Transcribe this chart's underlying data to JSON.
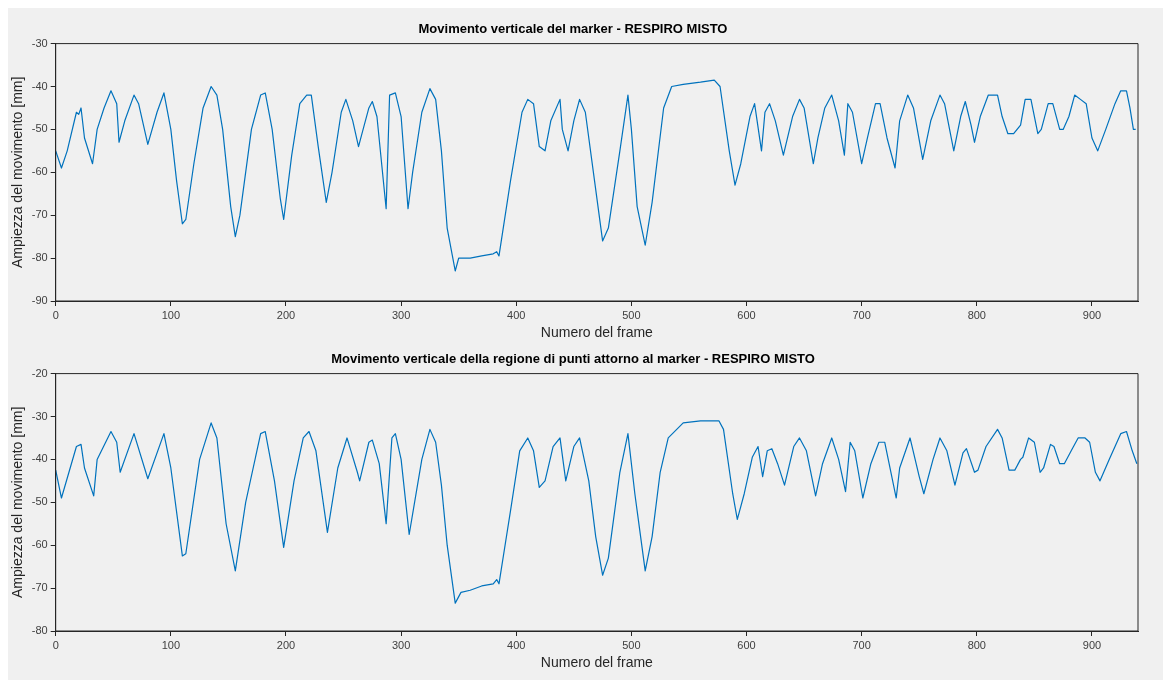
{
  "chart_data": [
    {
      "type": "line",
      "title": "Movimento verticale del marker - RESPIRO MISTO",
      "xlabel": "Numero del frame",
      "ylabel": "Ampiezza del movimento [mm]",
      "xlim": [
        0,
        940
      ],
      "xticks": [
        0,
        100,
        200,
        300,
        400,
        500,
        600,
        700,
        800,
        900
      ],
      "ylim": [
        -90,
        -30
      ],
      "yticks": [
        -90,
        -80,
        -70,
        -60,
        -50,
        -40,
        -30
      ],
      "grid": false,
      "series": [
        {
          "color": "#0072bd",
          "x": [
            0,
            5,
            10,
            18,
            20,
            22,
            25,
            32,
            36,
            42,
            48,
            53,
            55,
            60,
            68,
            72,
            80,
            88,
            94,
            100,
            105,
            110,
            113,
            120,
            128,
            135,
            140,
            145,
            152,
            156,
            160,
            170,
            178,
            182,
            188,
            195,
            198,
            205,
            212,
            218,
            222,
            228,
            235,
            240,
            248,
            252,
            258,
            263,
            266,
            272,
            275,
            279,
            287,
            290,
            295,
            300,
            306,
            310,
            318,
            325,
            330,
            335,
            340,
            347,
            350,
            360,
            370,
            380,
            383,
            385,
            395,
            405,
            410,
            415,
            420,
            425,
            430,
            438,
            440,
            445,
            450,
            455,
            460,
            468,
            475,
            480,
            490,
            497,
            500,
            505,
            512,
            518,
            528,
            535,
            545,
            560,
            572,
            577,
            585,
            590,
            595,
            603,
            607,
            613,
            616,
            620,
            625,
            632,
            640,
            646,
            650,
            658,
            662,
            668,
            674,
            680,
            685,
            688,
            692,
            700,
            705,
            712,
            716,
            722,
            729,
            733,
            740,
            745,
            753,
            760,
            768,
            772,
            780,
            786,
            790,
            795,
            798,
            803,
            810,
            818,
            822,
            827,
            832,
            838,
            842,
            847,
            853,
            856,
            862,
            866,
            872,
            875,
            880,
            885,
            890,
            895,
            900,
            905,
            912,
            920,
            925,
            930,
            933,
            936,
            938
          ],
          "values": [
            -55,
            -59,
            -55,
            -46,
            -46.5,
            -45,
            -52,
            -58,
            -50,
            -45,
            -41,
            -44,
            -53,
            -48,
            -42,
            -44,
            -53.5,
            -46,
            -41.5,
            -50,
            -62,
            -72,
            -71,
            -58,
            -45,
            -40,
            -42,
            -50,
            -68,
            -75,
            -70,
            -50,
            -42,
            -41.5,
            -50,
            -66,
            -71,
            -56,
            -44,
            -42,
            -42,
            -54,
            -67,
            -60,
            -46,
            -43,
            -48,
            -54,
            -51,
            -45,
            -43.5,
            -47,
            -68.5,
            -42,
            -41.5,
            -47,
            -68.5,
            -60,
            -46,
            -40.5,
            -43,
            -55,
            -73,
            -83,
            -80,
            -80,
            -79.5,
            -79,
            -78.5,
            -79.5,
            -62,
            -46,
            -43,
            -44,
            -54,
            -55,
            -48,
            -43,
            -50,
            -55,
            -48,
            -43,
            -46,
            -62,
            -76,
            -73,
            -55,
            -42,
            -50,
            -68,
            -77,
            -67,
            -45,
            -40,
            -39.5,
            -39,
            -38.5,
            -40,
            -55,
            -63,
            -58,
            -47,
            -44,
            -55,
            -46,
            -44,
            -48,
            -56,
            -47,
            -43,
            -45,
            -58,
            -52,
            -45,
            -42,
            -48,
            -56,
            -44,
            -46,
            -58,
            -52,
            -44,
            -44,
            -52,
            -59,
            -48,
            -42,
            -45,
            -57,
            -48,
            -42,
            -44,
            -55,
            -47,
            -43.5,
            -49,
            -53,
            -47,
            -42,
            -42,
            -47,
            -51,
            -51,
            -49,
            -43,
            -43,
            -51,
            -50,
            -44,
            -44,
            -50,
            -50,
            -47,
            -42,
            -43,
            -44,
            -52,
            -55,
            -50,
            -44,
            -41,
            -41,
            -45,
            -50,
            -50
          ]
        }
      ]
    },
    {
      "type": "line",
      "title": "Movimento verticale della regione di punti attorno al marker - RESPIRO MISTO",
      "xlabel": "Numero del frame",
      "ylabel": "Ampiezza del movimento [mm]",
      "xlim": [
        0,
        940
      ],
      "xticks": [
        0,
        100,
        200,
        300,
        400,
        500,
        600,
        700,
        800,
        900
      ],
      "ylim": [
        -80,
        -20
      ],
      "yticks": [
        -80,
        -70,
        -60,
        -50,
        -40,
        -30,
        -20
      ],
      "grid": false,
      "series": [
        {
          "color": "#0072bd",
          "x": [
            0,
            5,
            18,
            22,
            25,
            33,
            36,
            48,
            53,
            56,
            68,
            80,
            94,
            100,
            110,
            113,
            125,
            135,
            140,
            148,
            156,
            165,
            178,
            182,
            190,
            198,
            207,
            215,
            220,
            226,
            236,
            245,
            253,
            262,
            264,
            272,
            275,
            281,
            287,
            292,
            295,
            300,
            307,
            318,
            325,
            330,
            335,
            340,
            347,
            352,
            360,
            370,
            380,
            383,
            385,
            395,
            403,
            410,
            415,
            420,
            425,
            432,
            438,
            443,
            450,
            455,
            463,
            469,
            475,
            480,
            490,
            497,
            503,
            512,
            518,
            525,
            532,
            545,
            560,
            576,
            580,
            588,
            592,
            598,
            605,
            610,
            614,
            618,
            622,
            627,
            633,
            641,
            646,
            652,
            660,
            666,
            674,
            680,
            686,
            690,
            694,
            701,
            708,
            715,
            720,
            730,
            733,
            742,
            750,
            754,
            762,
            768,
            774,
            781,
            788,
            791,
            798,
            801,
            808,
            818,
            822,
            828,
            833,
            838,
            840,
            845,
            850,
            855,
            858,
            864,
            867,
            872,
            876,
            882,
            888,
            894,
            898,
            903,
            907,
            915,
            925,
            930,
            935,
            939
          ],
          "values": [
            -42.5,
            -49,
            -37,
            -36.5,
            -42,
            -48.5,
            -40,
            -33.5,
            -36,
            -43,
            -34,
            -44.5,
            -34,
            -42,
            -62.5,
            -62,
            -40,
            -31.5,
            -35,
            -55,
            -66,
            -50,
            -34,
            -33.5,
            -45,
            -60.5,
            -45,
            -35,
            -33.5,
            -38,
            -57,
            -42,
            -35,
            -43,
            -45,
            -36,
            -35.5,
            -41,
            -55,
            -35,
            -34,
            -40,
            -57.5,
            -40,
            -33,
            -36,
            -46,
            -60,
            -73.5,
            -71,
            -70.5,
            -69.5,
            -69,
            -68,
            -69,
            -52,
            -38,
            -35,
            -38,
            -46.5,
            -45,
            -37,
            -35,
            -45,
            -37,
            -35,
            -45,
            -58,
            -67,
            -63,
            -43,
            -34,
            -48,
            -66,
            -58,
            -43,
            -35,
            -31.5,
            -31,
            -31,
            -33,
            -48,
            -54,
            -48,
            -39.5,
            -37,
            -44,
            -38,
            -37.5,
            -41,
            -46,
            -37,
            -35,
            -38,
            -48.5,
            -41,
            -35,
            -40,
            -47.5,
            -36,
            -38,
            -49,
            -41,
            -36,
            -36,
            -49,
            -42,
            -35,
            -44,
            -48,
            -40,
            -35,
            -38,
            -46,
            -38.5,
            -37.5,
            -43,
            -42.5,
            -37,
            -33,
            -35,
            -42.5,
            -42.5,
            -40,
            -39.5,
            -35,
            -36,
            -43,
            -42,
            -36.5,
            -37,
            -41,
            -41,
            -38,
            -35,
            -35,
            -36,
            -43,
            -45,
            -40,
            -34,
            -33.5,
            -38,
            -41
          ]
        }
      ]
    }
  ]
}
